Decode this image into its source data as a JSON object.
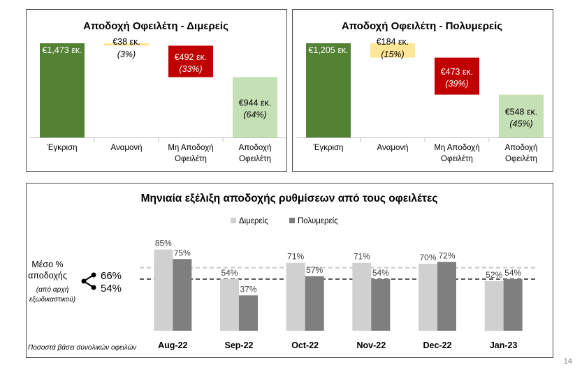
{
  "page_number": "14",
  "colors": {
    "approve": "#548235",
    "pending": "#ffe699",
    "reject": "#c00000",
    "accept": "#c5e0b4",
    "series_light": "#d0d0d0",
    "series_dark": "#7f7f7f"
  },
  "chart_data": [
    {
      "type": "bar",
      "subtype": "waterfall",
      "title": "Αποδοχή Οφειλέτη - Διμερείς",
      "categories": [
        "Έγκριση",
        "Αναμονή",
        "Μη Αποδοχή Οφειλέτη",
        "Αποδοχή Οφειλέτη"
      ],
      "category_lines": [
        [
          "Έγκριση"
        ],
        [
          "Αναμονή"
        ],
        [
          "Μη Αποδοχή",
          "Οφειλέτη"
        ],
        [
          "Αποδοχή",
          "Οφειλέτη"
        ]
      ],
      "values": [
        1473,
        38,
        492,
        944
      ],
      "value_labels": [
        "€1,473 εκ.",
        "€38 εκ.",
        "€492 εκ.",
        "€944 εκ."
      ],
      "pct_labels": [
        "",
        "(3%)",
        "(33%)",
        "(64%)"
      ],
      "unit": "εκ."
    },
    {
      "type": "bar",
      "subtype": "waterfall",
      "title": "Αποδοχή Οφειλέτη - Πολυμερείς",
      "categories": [
        "Έγκριση",
        "Αναμονή",
        "Μη Αποδοχή Οφειλέτη",
        "Αποδοχή Οφειλέτη"
      ],
      "category_lines": [
        [
          "Έγκριση"
        ],
        [
          "Αναμονή"
        ],
        [
          "Μη Αποδοχή",
          "Οφειλέτη"
        ],
        [
          "Αποδοχή",
          "Οφειλέτη"
        ]
      ],
      "values": [
        1205,
        184,
        473,
        548
      ],
      "value_labels": [
        "€1,205 εκ.",
        "€184 εκ.",
        "€473 εκ.",
        "€548 εκ."
      ],
      "pct_labels": [
        "",
        "(15%)",
        "(39%)",
        "(45%)"
      ],
      "unit": "εκ."
    },
    {
      "type": "bar",
      "title": "Μηνιαία εξέλιξη αποδοχής ρυθμίσεων από τους οφειλέτες",
      "categories": [
        "Aug-22",
        "Sep-22",
        "Oct-22",
        "Nov-22",
        "Dec-22",
        "Jan-23"
      ],
      "series": [
        {
          "name": "Διμερείς",
          "values": [
            85,
            54,
            71,
            71,
            70,
            52
          ],
          "labels": [
            "85%",
            "54%",
            "71%",
            "71%",
            "70%",
            "52%"
          ]
        },
        {
          "name": "Πολυμερείς",
          "values": [
            75,
            37,
            57,
            54,
            72,
            54
          ],
          "labels": [
            "75%",
            "37%",
            "57%",
            "54%",
            "72%",
            "54%"
          ]
        }
      ],
      "reference_lines": [
        {
          "value": 66,
          "label": "66%"
        },
        {
          "value": 54,
          "label": "54%"
        }
      ],
      "average_title_lines": [
        "Μέσο %",
        "αποδοχής"
      ],
      "average_note_lines": [
        "(από αρχή",
        "εξωδικαστικού)"
      ],
      "legend_position": "top",
      "ylim": [
        0,
        100
      ],
      "footnote": "Ποσοστά βάσει συνολικών οφειλών"
    }
  ]
}
